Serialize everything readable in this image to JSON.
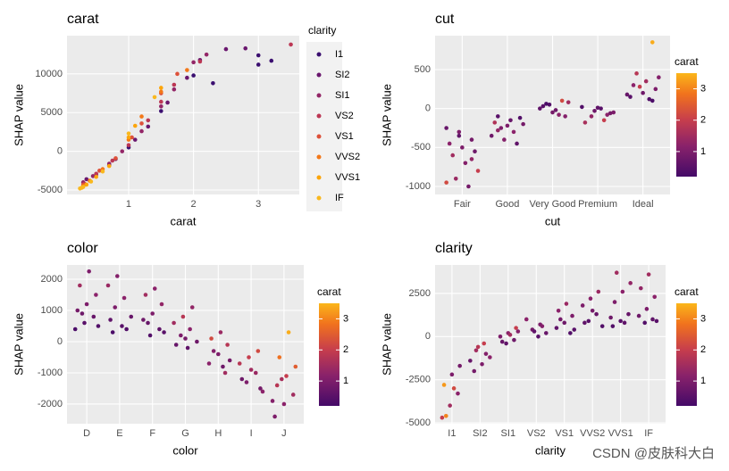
{
  "chart_data": [
    {
      "type": "scatter",
      "title": "carat",
      "x_label": "carat",
      "y_label": "SHAP value",
      "xlim": [
        0.05,
        3.63
      ],
      "ylim": [
        -5575,
        14940
      ],
      "xticks": [
        1,
        2,
        3
      ],
      "yticks": [
        -5000,
        0,
        5000,
        10000
      ],
      "legend_title": "clarity",
      "series": [
        {
          "name": "I1",
          "color": "#3b0f70",
          "x": [
            0.7,
            1.0,
            1.5,
            2.0,
            2.3,
            3.0,
            3.2,
            3.0
          ],
          "y": [
            -1800,
            500,
            5200,
            9800,
            8800,
            11200,
            11700,
            12400
          ]
        },
        {
          "name": "SI2",
          "color": "#6a176e",
          "x": [
            0.35,
            0.5,
            0.8,
            1.1,
            1.3,
            1.6,
            1.9,
            2.1,
            2.5,
            2.8
          ],
          "y": [
            -3600,
            -3000,
            -1000,
            1500,
            3200,
            6300,
            9500,
            11800,
            13200,
            13300
          ]
        },
        {
          "name": "SI1",
          "color": "#932667",
          "x": [
            0.3,
            0.45,
            0.7,
            0.9,
            1.2,
            1.5,
            1.7,
            2.0,
            2.2
          ],
          "y": [
            -4000,
            -3200,
            -1600,
            0,
            2600,
            5800,
            8000,
            11500,
            12500
          ]
        },
        {
          "name": "VS2",
          "color": "#bc3754",
          "x": [
            0.32,
            0.5,
            0.75,
            1.0,
            1.3,
            1.5,
            1.7,
            2.1,
            3.5
          ],
          "y": [
            -4200,
            -2900,
            -1200,
            800,
            4000,
            6400,
            8600,
            11600,
            13800
          ]
        },
        {
          "name": "VS1",
          "color": "#dd513a",
          "x": [
            0.3,
            0.55,
            0.8,
            1.05,
            1.2,
            1.5,
            1.75
          ],
          "y": [
            -4300,
            -2500,
            -900,
            1800,
            3600,
            7500,
            10000
          ]
        },
        {
          "name": "VVS2",
          "color": "#f37819",
          "x": [
            0.3,
            0.4,
            0.6,
            1.0,
            1.2,
            1.5,
            1.9
          ],
          "y": [
            -4500,
            -3800,
            -2300,
            1500,
            4500,
            7700,
            10500
          ]
        },
        {
          "name": "VVS1",
          "color": "#fca50a",
          "x": [
            0.28,
            0.35,
            0.5,
            0.7,
            1.0,
            1.1,
            1.5
          ],
          "y": [
            -4700,
            -4300,
            -3300,
            -1900,
            1800,
            3300,
            8200
          ]
        },
        {
          "name": "IF",
          "color": "#f9b81e",
          "x": [
            0.25,
            0.3,
            0.42,
            0.6,
            1.0,
            1.4
          ],
          "y": [
            -4800,
            -4600,
            -3900,
            -2600,
            2300,
            7000
          ]
        }
      ]
    },
    {
      "type": "strip",
      "title": "cut",
      "x_label": "cut",
      "y_label": "SHAP value",
      "categories": [
        "Fair",
        "Good",
        "Very Good",
        "Premium",
        "Ideal"
      ],
      "values": [
        [
          -250,
          -300,
          -400,
          -450,
          -500,
          -550,
          -600,
          -700,
          -800,
          -900,
          -1000,
          -950,
          -350,
          -650
        ],
        [
          -100,
          -150,
          -200,
          -250,
          -300,
          -350,
          -400,
          -450,
          -180,
          -220,
          -120,
          -280
        ],
        [
          50,
          100,
          0,
          -50,
          -100,
          30,
          -20,
          80,
          60,
          -80
        ],
        [
          0,
          -50,
          -100,
          -150,
          20,
          -30,
          -80,
          -180,
          10,
          -60
        ],
        [
          100,
          150,
          200,
          250,
          300,
          350,
          400,
          450,
          120,
          180,
          280,
          850
        ]
      ],
      "carat": [
        [
          0.7,
          1.0,
          0.9,
          1.2,
          1.0,
          0.8,
          1.5,
          1.1,
          2.0,
          1.4,
          0.9,
          2.2,
          0.6,
          1.3
        ],
        [
          0.5,
          0.7,
          0.9,
          1.0,
          1.2,
          0.8,
          1.1,
          0.6,
          1.7,
          1.0,
          0.4,
          1.3
        ],
        [
          0.4,
          2.2,
          0.6,
          0.9,
          1.1,
          0.5,
          0.8,
          1.5,
          0.3,
          1.2
        ],
        [
          0.5,
          1.0,
          1.3,
          2.0,
          0.4,
          0.8,
          1.2,
          1.6,
          0.6,
          0.9
        ],
        [
          0.3,
          0.5,
          0.8,
          1.0,
          1.2,
          1.5,
          1.1,
          1.8,
          0.4,
          0.7,
          2.0,
          3.4
        ]
      ],
      "ylim": [
        -1103,
        935
      ],
      "yticks": [
        -1000,
        -500,
        0,
        500
      ],
      "colorbar_title": "carat",
      "clim": [
        0.2,
        3.5
      ],
      "cticks": [
        1,
        2,
        3
      ]
    },
    {
      "type": "strip",
      "title": "color",
      "x_label": "color",
      "y_label": "SHAP value",
      "categories": [
        "D",
        "E",
        "F",
        "G",
        "H",
        "I",
        "J"
      ],
      "values": [
        [
          400,
          600,
          800,
          1000,
          1200,
          1500,
          1800,
          2250,
          500,
          900
        ],
        [
          300,
          500,
          800,
          1100,
          1400,
          1800,
          2100,
          400,
          700
        ],
        [
          200,
          400,
          700,
          900,
          1200,
          1500,
          1700,
          300,
          600
        ],
        [
          -200,
          0,
          200,
          400,
          600,
          800,
          1100,
          -100,
          100
        ],
        [
          -1000,
          -700,
          -400,
          -100,
          100,
          300,
          -600,
          -300,
          -800
        ],
        [
          -1600,
          -1300,
          -1000,
          -700,
          -500,
          -300,
          -1200,
          -900,
          -1500
        ],
        [
          -2400,
          -2000,
          -1700,
          -1400,
          -1100,
          -800,
          -500,
          300,
          -1900,
          -1200
        ]
      ],
      "carat": [
        [
          0.3,
          0.5,
          0.7,
          0.9,
          1.0,
          1.2,
          1.5,
          1.0,
          0.4,
          0.8
        ],
        [
          0.3,
          0.5,
          0.7,
          1.0,
          1.2,
          1.4,
          1.1,
          0.4,
          0.6
        ],
        [
          0.4,
          0.6,
          0.8,
          1.0,
          1.3,
          1.5,
          1.2,
          0.5,
          0.7
        ],
        [
          0.6,
          0.8,
          1.0,
          1.2,
          1.5,
          1.8,
          1.3,
          0.7,
          0.9
        ],
        [
          1.5,
          1.2,
          1.0,
          1.8,
          2.2,
          1.4,
          0.9,
          1.1,
          0.8
        ],
        [
          1.2,
          1.0,
          1.4,
          1.8,
          2.0,
          2.2,
          0.8,
          1.5,
          0.9
        ],
        [
          1.0,
          1.2,
          1.5,
          1.8,
          2.0,
          2.5,
          2.8,
          3.4,
          1.1,
          1.6
        ]
      ],
      "ylim": [
        -2629,
        2457
      ],
      "yticks": [
        -2000,
        -1000,
        0,
        1000,
        2000
      ],
      "colorbar_title": "carat",
      "clim": [
        0.2,
        3.5
      ],
      "cticks": [
        1,
        2,
        3
      ]
    },
    {
      "type": "strip",
      "title": "clarity",
      "x_label": "clarity",
      "y_label": "SHAP value",
      "categories": [
        "I1",
        "SI2",
        "SI1",
        "VS2",
        "VS1",
        "VVS2",
        "VVS1",
        "IF"
      ],
      "values": [
        [
          -4700,
          -4000,
          -3300,
          -2800,
          -2200,
          -1700,
          -4600,
          -3000
        ],
        [
          -2000,
          -1600,
          -1200,
          -800,
          -400,
          -1400,
          -600,
          -1000
        ],
        [
          -400,
          -200,
          0,
          200,
          500,
          -300,
          100,
          300
        ],
        [
          0,
          200,
          400,
          700,
          1000,
          300,
          600
        ],
        [
          200,
          500,
          800,
          1200,
          1500,
          1900,
          400,
          1000
        ],
        [
          600,
          900,
          1300,
          1800,
          2200,
          2600,
          800,
          1500
        ],
        [
          600,
          900,
          1300,
          2000,
          2600,
          3100,
          3700,
          800,
          1100
        ],
        [
          800,
          1000,
          1200,
          1600,
          2300,
          2800,
          3600,
          900
        ]
      ],
      "carat": [
        [
          2.0,
          1.5,
          1.2,
          3.2,
          1.0,
          0.9,
          3.0,
          2.2
        ],
        [
          0.9,
          1.0,
          1.2,
          1.5,
          2.0,
          0.7,
          1.8,
          1.1
        ],
        [
          0.6,
          0.8,
          1.0,
          1.2,
          2.0,
          0.7,
          1.5,
          1.1
        ],
        [
          0.5,
          0.7,
          0.9,
          1.0,
          1.2,
          0.6,
          1.1
        ],
        [
          0.4,
          0.6,
          0.8,
          1.0,
          1.2,
          1.4,
          0.5,
          0.9
        ],
        [
          0.4,
          0.5,
          0.7,
          1.0,
          1.2,
          1.4,
          0.6,
          0.9
        ],
        [
          0.4,
          0.5,
          0.7,
          1.0,
          1.2,
          1.3,
          1.5,
          0.6,
          0.8
        ],
        [
          0.4,
          0.6,
          0.8,
          1.0,
          1.2,
          1.3,
          1.5,
          0.5
        ]
      ],
      "ylim": [
        -5050,
        4150
      ],
      "yticks": [
        -5000,
        -2500,
        0,
        2500
      ],
      "colorbar_title": "carat",
      "clim": [
        0.2,
        3.5
      ],
      "cticks": [
        1,
        2,
        3
      ]
    }
  ],
  "watermark": "CSDN @皮肤科大白"
}
